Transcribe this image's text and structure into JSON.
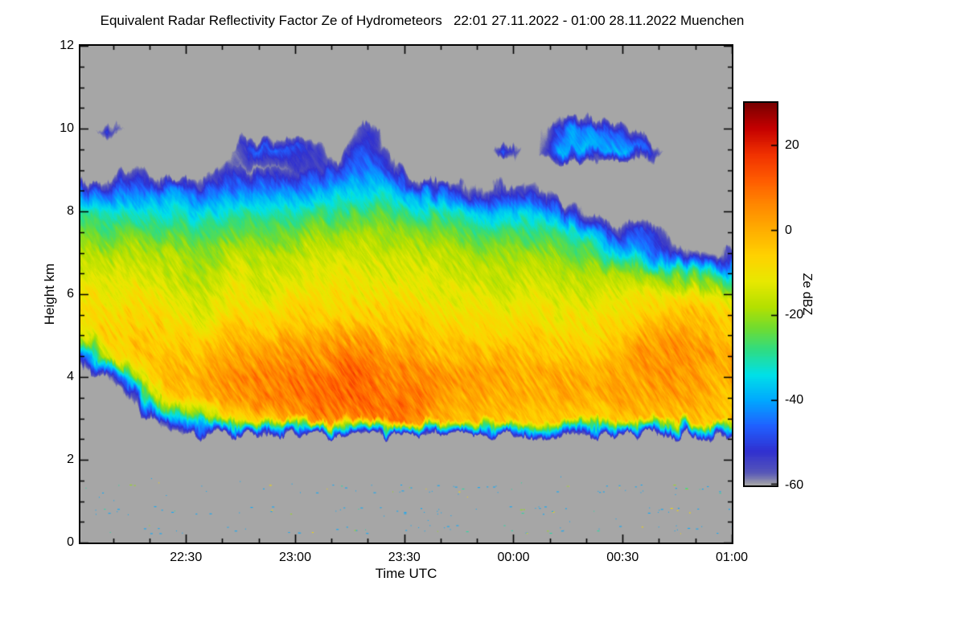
{
  "title": "Equivalent Radar Reflectivity Factor Ze of Hydrometeors   22:01 27.11.2022 - 01:00 28.11.2022 Muenchen",
  "axes": {
    "x": {
      "label": "Time UTC",
      "tick_labels": [
        "22:30",
        "23:00",
        "23:30",
        "00:00",
        "00:30",
        "01:00"
      ],
      "tick_minutes": [
        29,
        59,
        89,
        119,
        149,
        179
      ],
      "minor_step_min": 10,
      "start_min": 0,
      "end_min": 179
    },
    "y": {
      "label": "Height km",
      "tick_values": [
        0,
        2,
        4,
        6,
        8,
        10,
        12
      ],
      "minor_step_km": 0.5,
      "min": 0,
      "max": 12
    }
  },
  "colorbar": {
    "label": "Ze dBZ",
    "tick_values": [
      20,
      0,
      -20,
      -40,
      -60
    ],
    "vmin": -60,
    "vmax": 30,
    "stops": [
      [
        -60,
        "#a6a6a6"
      ],
      [
        -57,
        "#5656b8"
      ],
      [
        -52,
        "#3030d0"
      ],
      [
        -46,
        "#2060ff"
      ],
      [
        -40,
        "#00a8ff"
      ],
      [
        -34,
        "#00e0e8"
      ],
      [
        -28,
        "#30dc80"
      ],
      [
        -23,
        "#70dc30"
      ],
      [
        -18,
        "#b4e000"
      ],
      [
        -12,
        "#e8e800"
      ],
      [
        -6,
        "#ffd200"
      ],
      [
        0,
        "#ffae00"
      ],
      [
        6,
        "#ff8800"
      ],
      [
        12,
        "#ff5a00"
      ],
      [
        18,
        "#f03000"
      ],
      [
        24,
        "#c40000"
      ],
      [
        30,
        "#780000"
      ]
    ]
  },
  "plot_background": "#a6a6a6",
  "chart_data": {
    "type": "heatmap",
    "title": "Equivalent Radar Reflectivity Factor Ze of Hydrometeors",
    "time_span": "22:01 27.11.2022 - 01:00 28.11.2022",
    "site": "Muenchen",
    "xlabel": "Time UTC",
    "ylabel": "Height km",
    "value_label": "Ze dBZ",
    "value_range": [
      -60,
      30
    ],
    "no_echo_value": -70,
    "x_minutes_after_2201utc": [
      0,
      7.8,
      15.6,
      23.3,
      31.1,
      38.9,
      46.7,
      54.5,
      62.2,
      70,
      77.8,
      85.6,
      93.4,
      101.1,
      108.9,
      116.7,
      124.5,
      132.2,
      140,
      147.8,
      155.7,
      163.4,
      171.2,
      179
    ],
    "y_height_km": [
      0,
      0.5,
      1,
      1.5,
      2,
      2.5,
      3,
      3.5,
      4,
      4.5,
      5,
      5.5,
      6,
      6.5,
      7,
      7.5,
      8,
      8.5,
      9,
      9.5,
      10,
      10.5,
      11,
      11.5,
      12
    ],
    "values_dbz": [
      [
        -70,
        -70,
        -70,
        -70,
        -70,
        -70,
        -70,
        -70,
        -70,
        -45,
        -14,
        -8,
        -10,
        -13,
        -18,
        -25,
        -33,
        -46,
        -70,
        -70,
        -70,
        -70,
        -70,
        -70,
        -70
      ],
      [
        -70,
        -70,
        -70,
        -70,
        -70,
        -70,
        -70,
        -70,
        -55,
        -10,
        -5,
        -8,
        -11,
        -14,
        -18,
        -26,
        -34,
        -46,
        -70,
        -70,
        -48,
        -70,
        -70,
        -70,
        -70
      ],
      [
        -70,
        -70,
        -70,
        -70,
        -70,
        -70,
        -70,
        -50,
        -12,
        -5,
        -3,
        -6,
        -9,
        -13,
        -17,
        -24,
        -32,
        -42,
        -56,
        -70,
        -70,
        -70,
        -70,
        -70,
        -70
      ],
      [
        -70,
        -70,
        -70,
        -70,
        -70,
        -70,
        -55,
        -8,
        -2,
        -2,
        -6,
        -9,
        -12,
        -15,
        -19,
        -26,
        -34,
        -44,
        -70,
        -70,
        -70,
        -70,
        -70,
        -70,
        -70
      ],
      [
        -70,
        -70,
        -70,
        -70,
        -70,
        -70,
        -25,
        -2,
        0,
        -3,
        -7,
        -11,
        -13,
        -16,
        -20,
        -27,
        -35,
        -45,
        -70,
        -70,
        -70,
        -70,
        -70,
        -70,
        -70
      ],
      [
        -70,
        -70,
        -70,
        -70,
        -70,
        -70,
        -10,
        2,
        4,
        0,
        -5,
        -10,
        -13,
        -15,
        -19,
        -25,
        -33,
        -43,
        -55,
        -70,
        -70,
        -70,
        -70,
        -70,
        -70
      ],
      [
        -70,
        -70,
        -70,
        -70,
        -70,
        -70,
        -6,
        5,
        6,
        2,
        -3,
        -8,
        -12,
        -15,
        -18,
        -24,
        -32,
        -42,
        -60,
        -45,
        -70,
        -70,
        -70,
        -70,
        -70
      ],
      [
        -70,
        -70,
        -70,
        -70,
        -70,
        -70,
        0,
        7,
        7,
        3,
        -2,
        -7,
        -11,
        -14,
        -17,
        -23,
        -31,
        -41,
        -58,
        -46,
        -70,
        -70,
        -70,
        -70,
        -70
      ],
      [
        -70,
        -70,
        -70,
        -70,
        -70,
        -70,
        4,
        9,
        8,
        4,
        -1,
        -6,
        -10,
        -13,
        -16,
        -22,
        -30,
        -40,
        -55,
        -48,
        -70,
        -70,
        -70,
        -70,
        -70
      ],
      [
        -70,
        -70,
        -70,
        -70,
        -70,
        -70,
        6,
        10,
        9,
        5,
        0,
        -5,
        -9,
        -12,
        -16,
        -21,
        -29,
        -39,
        -52,
        -70,
        -70,
        -70,
        -70,
        -70,
        -70
      ],
      [
        -70,
        -70,
        -70,
        -70,
        -70,
        -70,
        7,
        11,
        10,
        6,
        1,
        -4,
        -8,
        -12,
        -15,
        -20,
        -28,
        -37,
        -45,
        -48,
        -52,
        -70,
        -70,
        -70,
        -70
      ],
      [
        -70,
        -70,
        -70,
        -70,
        -70,
        -70,
        8,
        10,
        7,
        3,
        -1,
        -5,
        -9,
        -13,
        -16,
        -21,
        -28,
        -37,
        -50,
        -70,
        -70,
        -70,
        -70,
        -70,
        -70
      ],
      [
        -70,
        -70,
        -70,
        -70,
        -70,
        -70,
        3,
        6,
        5,
        1,
        -3,
        -7,
        -10,
        -13,
        -17,
        -22,
        -30,
        -44,
        -70,
        -70,
        -70,
        -70,
        -70,
        -70,
        -70
      ],
      [
        -70,
        -70,
        -70,
        -70,
        -70,
        -70,
        -2,
        2,
        2,
        -1,
        -5,
        -9,
        -12,
        -15,
        -18,
        -24,
        -34,
        -50,
        -70,
        -70,
        -70,
        -70,
        -70,
        -70,
        -70
      ],
      [
        -70,
        -70,
        -70,
        -70,
        -70,
        -70,
        -4,
        0,
        1,
        -2,
        -6,
        -10,
        -13,
        -16,
        -20,
        -26,
        -36,
        -55,
        -70,
        -70,
        -70,
        -70,
        -70,
        -70,
        -70
      ],
      [
        -70,
        -70,
        -70,
        -70,
        -70,
        -70,
        -5,
        -1,
        0,
        -3,
        -7,
        -11,
        -14,
        -17,
        -21,
        -28,
        -38,
        -52,
        -70,
        -48,
        -70,
        -70,
        -70,
        -70,
        -70
      ],
      [
        -70,
        -70,
        -70,
        -70,
        -70,
        -70,
        -4,
        0,
        1,
        -2,
        -6,
        -10,
        -13,
        -16,
        -20,
        -27,
        -36,
        -55,
        -70,
        -70,
        -70,
        -70,
        -70,
        -70,
        -70
      ],
      [
        -70,
        -70,
        -70,
        -70,
        -70,
        -70,
        -3,
        1,
        1,
        -2,
        -6,
        -10,
        -13,
        -17,
        -22,
        -30,
        -48,
        -70,
        -70,
        -40,
        -45,
        -70,
        -70,
        -70,
        -70
      ],
      [
        -70,
        -70,
        -70,
        -70,
        -70,
        -70,
        -4,
        0,
        0,
        -3,
        -7,
        -11,
        -14,
        -18,
        -24,
        -36,
        -60,
        -70,
        -70,
        -36,
        -42,
        -70,
        -70,
        -70,
        -70
      ],
      [
        -70,
        -70,
        -70,
        -70,
        -70,
        -70,
        -4,
        -1,
        -1,
        -2,
        -5,
        -9,
        -13,
        -20,
        -35,
        -55,
        -70,
        -70,
        -70,
        -40,
        -48,
        -70,
        -70,
        -70,
        -70
      ],
      [
        -70,
        -70,
        -70,
        -70,
        -70,
        -70,
        -3,
        0,
        1,
        2,
        -1,
        -6,
        -12,
        -22,
        -45,
        -48,
        -70,
        -70,
        -70,
        -50,
        -70,
        -70,
        -70,
        -70,
        -70
      ],
      [
        -70,
        -70,
        -70,
        -70,
        -70,
        -70,
        -2,
        1,
        3,
        4,
        2,
        -4,
        -10,
        -28,
        -55,
        -70,
        -70,
        -70,
        -70,
        -70,
        -70,
        -70,
        -70,
        -70,
        -70
      ],
      [
        -70,
        -70,
        -70,
        -70,
        -70,
        -70,
        -3,
        0,
        2,
        3,
        0,
        -6,
        -12,
        -30,
        -58,
        -70,
        -70,
        -70,
        -70,
        -70,
        -70,
        -70,
        -70,
        -70,
        -70
      ],
      [
        -70,
        -70,
        -70,
        -70,
        -70,
        -70,
        -4,
        -1,
        0,
        1,
        -2,
        -8,
        -16,
        -35,
        -60,
        -70,
        -70,
        -70,
        -70,
        -70,
        -70,
        -70,
        -70,
        -70,
        -70
      ]
    ],
    "surface_clutter": {
      "bands_km": [
        0.32,
        0.78,
        1.3
      ],
      "height_range_km": [
        0.2,
        1.6
      ],
      "dbz_options": [
        -40,
        -30,
        -20,
        -8
      ]
    }
  }
}
